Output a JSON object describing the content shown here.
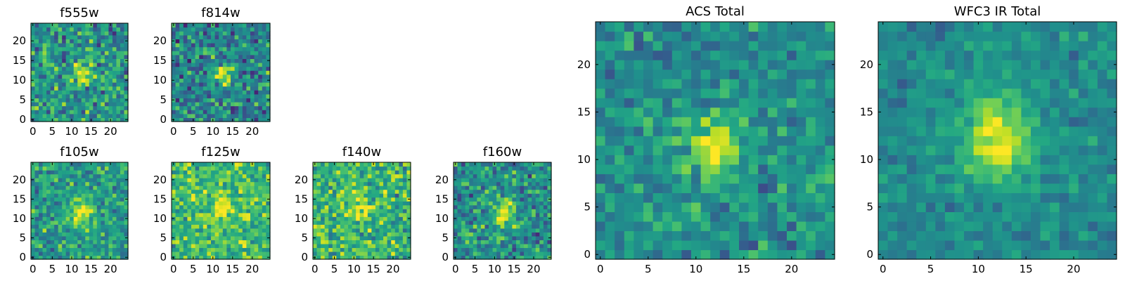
{
  "chart_data": [
    {
      "type": "heatmap",
      "title": "f555w",
      "x_ticks": [
        0,
        5,
        10,
        15,
        20
      ],
      "y_ticks": [
        0,
        5,
        10,
        15,
        20
      ],
      "xlim": [
        -0.5,
        24.5
      ],
      "ylim": [
        -0.5,
        24.5
      ],
      "grid": false,
      "colormap": "viridis",
      "source_peak": {
        "x": 12.5,
        "y": 11.5
      },
      "source_sigma": [
        1.9,
        2.2
      ],
      "source_peak_level": 0.95,
      "background_level": 0.52,
      "noise_level": 0.22
    },
    {
      "type": "heatmap",
      "title": "f814w",
      "x_ticks": [
        0,
        5,
        10,
        15,
        20
      ],
      "y_ticks": [
        0,
        5,
        10,
        15,
        20
      ],
      "xlim": [
        -0.5,
        24.5
      ],
      "ylim": [
        -0.5,
        24.5
      ],
      "grid": false,
      "colormap": "viridis",
      "source_peak": {
        "x": 12.5,
        "y": 11.5
      },
      "source_sigma": [
        1.7,
        2.0
      ],
      "source_peak_level": 0.95,
      "background_level": 0.45,
      "noise_level": 0.22
    },
    {
      "type": "heatmap",
      "title": "f105w",
      "x_ticks": [
        0,
        5,
        10,
        15,
        20
      ],
      "y_ticks": [
        0,
        5,
        10,
        15,
        20
      ],
      "xlim": [
        -0.5,
        24.5
      ],
      "ylim": [
        -0.5,
        24.5
      ],
      "grid": false,
      "colormap": "viridis",
      "source_peak": {
        "x": 12.5,
        "y": 11.5
      },
      "source_sigma": [
        2.2,
        2.6
      ],
      "source_peak_level": 0.95,
      "background_level": 0.55,
      "noise_level": 0.18
    },
    {
      "type": "heatmap",
      "title": "f125w",
      "x_ticks": [
        0,
        5,
        10,
        15,
        20
      ],
      "y_ticks": [
        0,
        5,
        10,
        15,
        20
      ],
      "xlim": [
        -0.5,
        24.5
      ],
      "ylim": [
        -0.5,
        24.5
      ],
      "grid": false,
      "colormap": "viridis",
      "source_peak": {
        "x": 12.0,
        "y": 11.5
      },
      "source_sigma": [
        2.4,
        2.8
      ],
      "source_peak_level": 0.95,
      "background_level": 0.68,
      "noise_level": 0.18
    },
    {
      "type": "heatmap",
      "title": "f140w",
      "x_ticks": [
        0,
        5,
        10,
        15,
        20
      ],
      "y_ticks": [
        0,
        5,
        10,
        15,
        20
      ],
      "xlim": [
        -0.5,
        24.5
      ],
      "ylim": [
        -0.5,
        24.5
      ],
      "grid": false,
      "colormap": "viridis",
      "source_peak": {
        "x": 11.5,
        "y": 12.5
      },
      "source_sigma": [
        2.4,
        2.8
      ],
      "source_peak_level": 0.93,
      "background_level": 0.66,
      "noise_level": 0.2
    },
    {
      "type": "heatmap",
      "title": "f160w",
      "x_ticks": [
        0,
        5,
        10,
        15,
        20
      ],
      "y_ticks": [
        0,
        5,
        10,
        15,
        20
      ],
      "xlim": [
        -0.5,
        24.5
      ],
      "ylim": [
        -0.5,
        24.5
      ],
      "grid": false,
      "colormap": "viridis",
      "source_peak": {
        "x": 12.5,
        "y": 11.5
      },
      "source_sigma": [
        1.8,
        2.6
      ],
      "source_peak_level": 0.95,
      "background_level": 0.5,
      "noise_level": 0.2
    },
    {
      "type": "heatmap",
      "title": "ACS Total",
      "x_ticks": [
        0,
        5,
        10,
        15,
        20
      ],
      "y_ticks": [
        0,
        5,
        10,
        15,
        20
      ],
      "xlim": [
        -0.5,
        24.5
      ],
      "ylim": [
        -0.5,
        24.5
      ],
      "grid": false,
      "colormap": "viridis",
      "source_peak": {
        "x": 12.0,
        "y": 11.5
      },
      "source_sigma": [
        1.9,
        2.1
      ],
      "source_peak_level": 0.97,
      "background_level": 0.5,
      "noise_level": 0.14
    },
    {
      "type": "heatmap",
      "title": "WFC3 IR Total",
      "x_ticks": [
        0,
        5,
        10,
        15,
        20
      ],
      "y_ticks": [
        0,
        5,
        10,
        15,
        20
      ],
      "xlim": [
        -0.5,
        24.5
      ],
      "ylim": [
        -0.5,
        24.5
      ],
      "grid": false,
      "colormap": "viridis",
      "source_peak": {
        "x": 12.0,
        "y": 12.0
      },
      "source_sigma": [
        2.6,
        3.4
      ],
      "source_peak_level": 0.97,
      "background_level": 0.48,
      "noise_level": 0.1
    }
  ]
}
